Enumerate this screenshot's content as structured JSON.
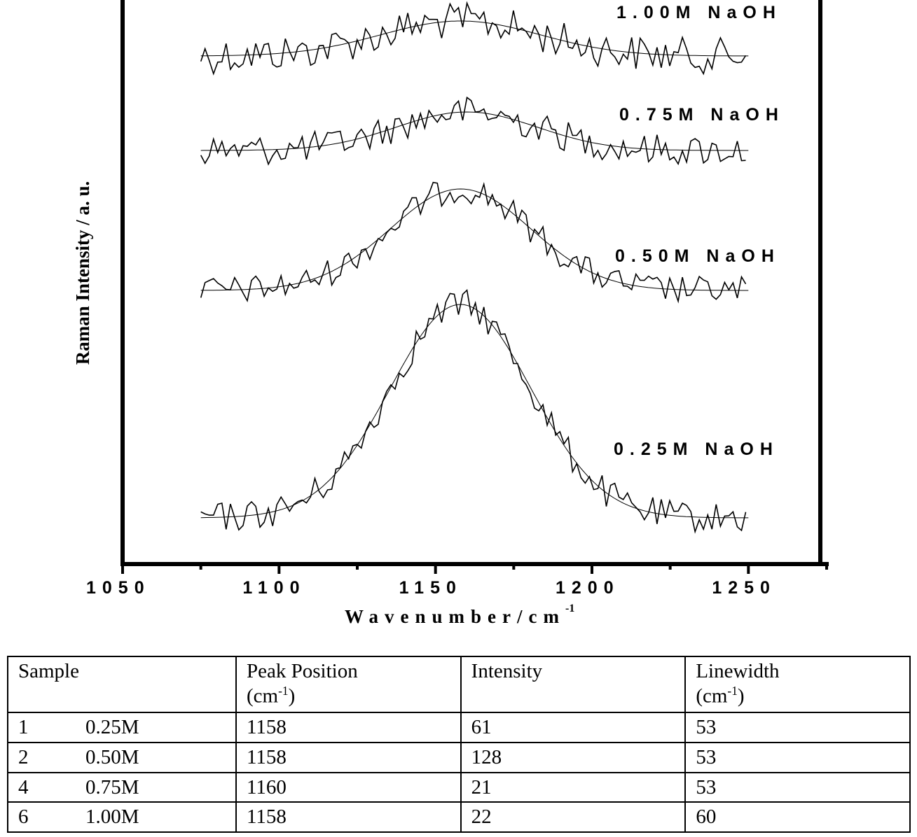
{
  "chart_data": {
    "type": "line",
    "xlabel": "Wavenumber/cm",
    "xlabel_sup": "-1",
    "ylabel": "Raman Intensity / a. u.",
    "xlim": [
      1050,
      1275
    ],
    "x_ticks": [
      "1050",
      "1100",
      "1150",
      "1200",
      "1250"
    ],
    "x_tick_values": [
      1050,
      1100,
      1150,
      1200,
      1250
    ],
    "y_ticks": [],
    "grid": false,
    "legend": "none",
    "data_range": [
      1075,
      1250
    ],
    "series": [
      {
        "name": "1.00M NaOH",
        "label": "1.00M NaOH",
        "fit": {
          "center": 1158,
          "amplitude": 22,
          "linewidth": 60
        }
      },
      {
        "name": "0.75M NaOH",
        "label": "0.75M NaOH",
        "fit": {
          "center": 1160,
          "amplitude": 21,
          "linewidth": 53
        }
      },
      {
        "name": "0.50M NaOH",
        "label": "0.50M NaOH",
        "fit": {
          "center": 1158,
          "amplitude": 128,
          "linewidth": 53
        }
      },
      {
        "name": "0.25M NaOH",
        "label": "0.25M NaOH",
        "fit": {
          "center": 1158,
          "amplitude": 61,
          "linewidth": 53
        }
      }
    ]
  },
  "table": {
    "headers": {
      "sample": "Sample",
      "peak": "Peak Position",
      "peak_unit": "(cm",
      "peak_unit_sup": "-1",
      "peak_unit_close": ")",
      "intensity": "Intensity",
      "linewidth": "Linewidth",
      "linewidth_unit": "(cm",
      "linewidth_unit_sup": "-1",
      "linewidth_unit_close": ")"
    },
    "rows": [
      {
        "num": "1",
        "conc": "0.25M",
        "peak": "1158",
        "intensity": "61",
        "linewidth": "53"
      },
      {
        "num": "2",
        "conc": "0.50M",
        "peak": "1158",
        "intensity": "128",
        "linewidth": "53"
      },
      {
        "num": "4",
        "conc": "0.75M",
        "peak": "1160",
        "intensity": "21",
        "linewidth": "53"
      },
      {
        "num": "6",
        "conc": "1.00M",
        "peak": "1158",
        "intensity": "22",
        "linewidth": "60"
      }
    ]
  }
}
